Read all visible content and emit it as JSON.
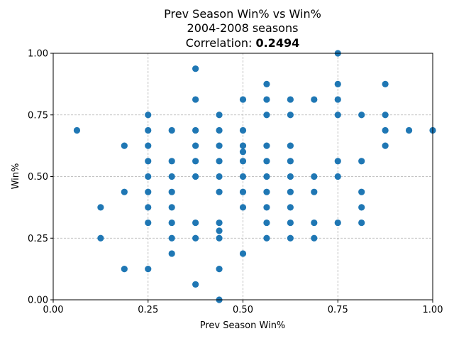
{
  "chart_data": {
    "type": "scatter",
    "title": "Prev Season Win% vs Win%",
    "subtitle": "2004-2008 seasons",
    "correlation_label": "Correlation: ",
    "correlation_value": "0.2494",
    "xlabel": "Prev Season Win%",
    "ylabel": "Win%",
    "xlim": [
      0,
      1
    ],
    "ylim": [
      0,
      1
    ],
    "xticks": [
      0,
      0.25,
      0.5,
      0.75,
      1
    ],
    "yticks": [
      0,
      0.25,
      0.5,
      0.75,
      1
    ],
    "xtick_labels": [
      "0.00",
      "0.25",
      "0.50",
      "0.75",
      "1.00"
    ],
    "ytick_labels": [
      "0.00",
      "0.25",
      "0.50",
      "0.75",
      "1.00"
    ],
    "grid": true,
    "point_color": "#1f77b4",
    "points": [
      [
        0.0625,
        0.6875
      ],
      [
        0.125,
        0.375
      ],
      [
        0.125,
        0.25
      ],
      [
        0.1875,
        0.625
      ],
      [
        0.1875,
        0.4375
      ],
      [
        0.1875,
        0.125
      ],
      [
        0.25,
        0.75
      ],
      [
        0.25,
        0.6875
      ],
      [
        0.25,
        0.625
      ],
      [
        0.25,
        0.5625
      ],
      [
        0.25,
        0.5
      ],
      [
        0.25,
        0.4375
      ],
      [
        0.25,
        0.375
      ],
      [
        0.25,
        0.3125
      ],
      [
        0.25,
        0.125
      ],
      [
        0.3125,
        0.6875
      ],
      [
        0.3125,
        0.5625
      ],
      [
        0.3125,
        0.5
      ],
      [
        0.3125,
        0.4375
      ],
      [
        0.3125,
        0.375
      ],
      [
        0.3125,
        0.3125
      ],
      [
        0.3125,
        0.25
      ],
      [
        0.3125,
        0.1875
      ],
      [
        0.375,
        0.9375
      ],
      [
        0.375,
        0.8125
      ],
      [
        0.375,
        0.6875
      ],
      [
        0.375,
        0.625
      ],
      [
        0.375,
        0.5625
      ],
      [
        0.375,
        0.5
      ],
      [
        0.375,
        0.3125
      ],
      [
        0.375,
        0.25
      ],
      [
        0.375,
        0.0625
      ],
      [
        0.4375,
        0.75
      ],
      [
        0.4375,
        0.6875
      ],
      [
        0.4375,
        0.625
      ],
      [
        0.4375,
        0.5625
      ],
      [
        0.4375,
        0.5
      ],
      [
        0.4375,
        0.4375
      ],
      [
        0.4375,
        0.3125
      ],
      [
        0.4375,
        0.28
      ],
      [
        0.4375,
        0.25
      ],
      [
        0.4375,
        0.125
      ],
      [
        0.4375,
        0.0
      ],
      [
        0.5,
        0.8125
      ],
      [
        0.5,
        0.6875
      ],
      [
        0.5,
        0.625
      ],
      [
        0.5,
        0.6
      ],
      [
        0.5,
        0.5625
      ],
      [
        0.5,
        0.5
      ],
      [
        0.5,
        0.4375
      ],
      [
        0.5,
        0.375
      ],
      [
        0.5,
        0.1875
      ],
      [
        0.5625,
        0.875
      ],
      [
        0.5625,
        0.8125
      ],
      [
        0.5625,
        0.75
      ],
      [
        0.5625,
        0.625
      ],
      [
        0.5625,
        0.5625
      ],
      [
        0.5625,
        0.5
      ],
      [
        0.5625,
        0.4375
      ],
      [
        0.5625,
        0.375
      ],
      [
        0.5625,
        0.3125
      ],
      [
        0.5625,
        0.25
      ],
      [
        0.625,
        0.8125
      ],
      [
        0.625,
        0.75
      ],
      [
        0.625,
        0.625
      ],
      [
        0.625,
        0.5625
      ],
      [
        0.625,
        0.5
      ],
      [
        0.625,
        0.4375
      ],
      [
        0.625,
        0.375
      ],
      [
        0.625,
        0.3125
      ],
      [
        0.625,
        0.25
      ],
      [
        0.6875,
        0.8125
      ],
      [
        0.6875,
        0.5
      ],
      [
        0.6875,
        0.4375
      ],
      [
        0.6875,
        0.3125
      ],
      [
        0.6875,
        0.25
      ],
      [
        0.75,
        1.0
      ],
      [
        0.75,
        0.875
      ],
      [
        0.75,
        0.8125
      ],
      [
        0.75,
        0.75
      ],
      [
        0.75,
        0.5625
      ],
      [
        0.75,
        0.5
      ],
      [
        0.75,
        0.3125
      ],
      [
        0.8125,
        0.75
      ],
      [
        0.8125,
        0.5625
      ],
      [
        0.8125,
        0.4375
      ],
      [
        0.8125,
        0.375
      ],
      [
        0.8125,
        0.3125
      ],
      [
        0.875,
        0.875
      ],
      [
        0.875,
        0.75
      ],
      [
        0.875,
        0.6875
      ],
      [
        0.875,
        0.625
      ],
      [
        0.9375,
        0.6875
      ],
      [
        1.0,
        0.6875
      ]
    ]
  }
}
